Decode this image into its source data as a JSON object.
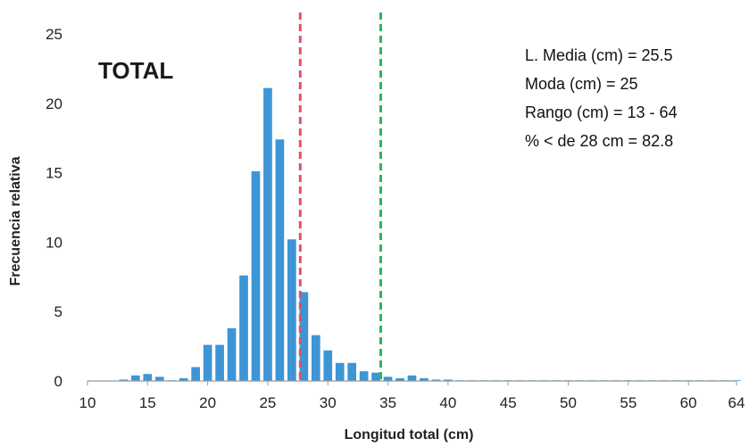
{
  "chart_data": {
    "type": "bar",
    "panel_label": "TOTAL",
    "xlabel": "Longitud total (cm)",
    "ylabel": "Frecuencia relativa",
    "xlim": [
      10,
      64
    ],
    "ylim": [
      0,
      25
    ],
    "x_ticks": [
      10,
      15,
      20,
      25,
      30,
      35,
      40,
      45,
      50,
      55,
      60,
      64
    ],
    "y_ticks": [
      0,
      5,
      10,
      15,
      20,
      25
    ],
    "bar_color": "#3d95d6",
    "x": [
      13,
      14,
      15,
      16,
      17,
      18,
      19,
      20,
      21,
      22,
      23,
      24,
      25,
      26,
      27,
      28,
      29,
      30,
      31,
      32,
      33,
      34,
      35,
      36,
      37,
      38,
      39,
      40,
      41,
      42,
      43,
      44,
      45,
      46,
      47,
      48,
      49,
      50,
      51,
      52,
      53,
      54,
      55,
      56,
      57,
      58,
      59,
      60,
      61,
      62,
      63,
      64
    ],
    "values": [
      0.1,
      0.4,
      0.5,
      0.3,
      0.05,
      0.2,
      1.0,
      2.6,
      2.6,
      3.8,
      7.6,
      15.1,
      21.1,
      17.4,
      10.2,
      6.4,
      3.3,
      2.2,
      1.3,
      1.3,
      0.7,
      0.6,
      0.3,
      0.2,
      0.4,
      0.2,
      0.1,
      0.1,
      0.05,
      0.05,
      0.05,
      0.05,
      0.05,
      0.05,
      0.05,
      0.05,
      0.05,
      0.05,
      0.05,
      0.05,
      0.05,
      0.05,
      0.05,
      0.05,
      0.05,
      0.05,
      0.05,
      0.05,
      0.05,
      0.05,
      0.05,
      0.05
    ],
    "reference_lines": [
      {
        "x": 27.7,
        "color": "#e0506a",
        "style": "dashed"
      },
      {
        "x": 34.4,
        "color": "#2bb563",
        "style": "dashed"
      }
    ],
    "annotations": [
      "L. Media (cm) = 25.5",
      "Moda (cm) = 25",
      "Rango (cm) = 13 - 64",
      "% < de 28 cm = 82.8"
    ]
  }
}
